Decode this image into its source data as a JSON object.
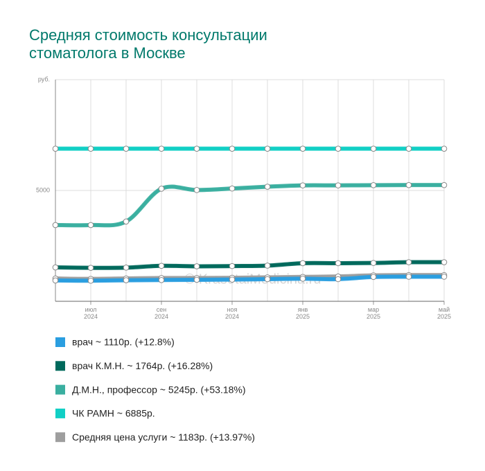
{
  "chart_data": {
    "type": "line",
    "title": [
      "Средняя стоимость консультации",
      "стоматолога в Москве"
    ],
    "watermark": "© KrasotaiMedicina.ru",
    "categories": [
      null,
      "июл 2024",
      null,
      "сен 2024",
      null,
      "ноя 2024",
      null,
      "янв 2025",
      null,
      "мар 2025",
      null,
      "май 2025"
    ],
    "ylim": [
      0,
      10000
    ],
    "yticks": [
      {
        "value": 5000,
        "label": "5000"
      },
      {
        "value": 10000,
        "label": "руб."
      }
    ],
    "grid": true,
    "legend": "bottom",
    "series": [
      {
        "name": "врач ~ 1110р. (+12.8%)",
        "color": "#2a9ee0",
        "values": [
          940,
          930,
          950,
          960,
          970,
          980,
          1000,
          1020,
          1000,
          1100,
          1110,
          1110
        ]
      },
      {
        "name": "врач К.М.Н. ~ 1764р. (+16.28%)",
        "color": "#00695c",
        "values": [
          1530,
          1510,
          1520,
          1600,
          1580,
          1590,
          1610,
          1720,
          1720,
          1730,
          1764,
          1764
        ]
      },
      {
        "name": "Д.М.Н., профессор ~ 5245р. (+53.18%)",
        "color": "#3aafa0",
        "values": [
          3440,
          3440,
          3600,
          5080,
          5020,
          5090,
          5170,
          5230,
          5230,
          5240,
          5245,
          5245
        ]
      },
      {
        "name": "ЧК РАМН ~ 6885р.",
        "color": "#11cfc5",
        "values": [
          6885,
          6885,
          6885,
          6885,
          6885,
          6885,
          6885,
          6885,
          6885,
          6885,
          6885,
          6885
        ]
      },
      {
        "name": "Средняя цена услуги ~ 1183р. (+13.97%)",
        "color": "#9e9e9e",
        "values": [
          1030,
          1010,
          1030,
          1050,
          1050,
          1060,
          1080,
          1100,
          1120,
          1170,
          1183,
          1183
        ]
      }
    ]
  }
}
